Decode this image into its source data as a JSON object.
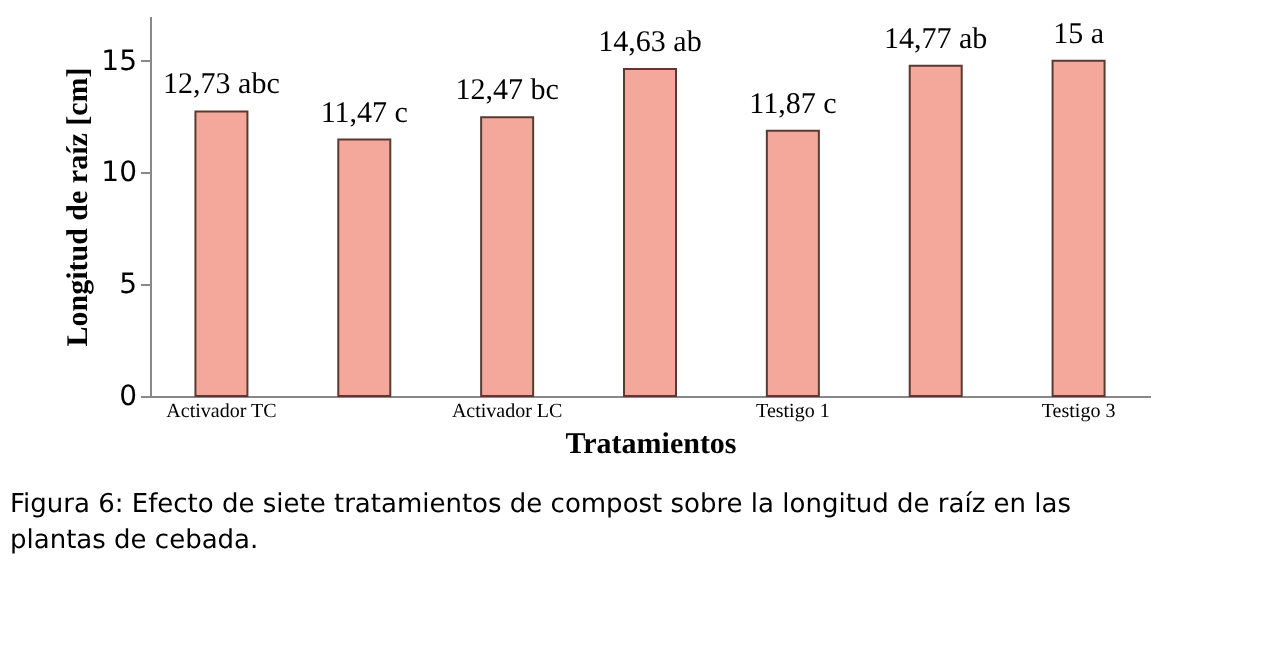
{
  "chart_data": {
    "type": "bar",
    "xlabel": "Tratamientos",
    "ylabel": "Longitud de raíz [cm]",
    "categories": [
      "Activador TC",
      null,
      "Activador LC",
      null,
      "Testigo 1",
      null,
      "Testigo 3"
    ],
    "values": [
      12.73,
      11.47,
      12.47,
      14.63,
      11.87,
      14.77,
      15
    ],
    "value_labels": [
      "12,73 abc",
      "11,47 c",
      "12,47 bc",
      "14,63 ab",
      "11,87 c",
      "14,77 ab",
      "15 a"
    ],
    "color": "#f4a89c",
    "ylim": [
      0,
      17
    ],
    "yticks": [
      0,
      5,
      10,
      15
    ],
    "grid": false,
    "annotations": [
      "Figura 6: Efecto de siete tratamientos de compost sobre la longitud de raíz en las plantas de cebada."
    ]
  }
}
